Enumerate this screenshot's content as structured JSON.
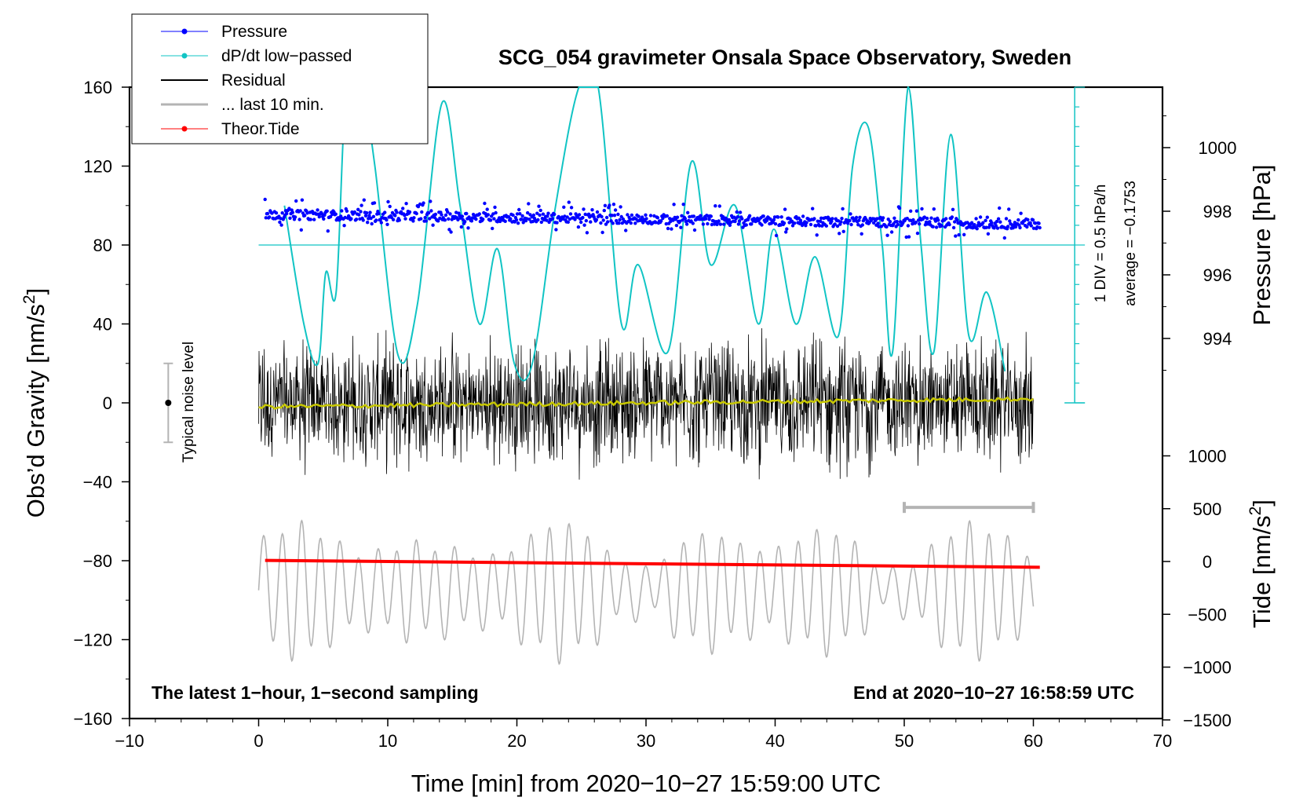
{
  "chart_data": {
    "type": "line",
    "title": "SCG_054 gravimeter Onsala Space Observatory, Sweden",
    "xlabel": "Time [min] from 2020−10−27 15:59:00 UTC",
    "ylabel_left": "Obs’d Gravity [nm/s²]",
    "ylabel_left_main": "Obs’d Gravity [nm/s",
    "ylabel_left_sup": "2",
    "ylabel_left_end": "]",
    "ylabel_right_pressure": "Pressure [hPa]",
    "ylabel_right_tide": "Tide [nm/s²]",
    "ylabel_right_tide_main": "Tide [nm/s",
    "ylabel_right_tide_sup": "2",
    "ylabel_right_tide_end": "]",
    "xlim": [
      -10,
      70
    ],
    "ylim": [
      -160,
      160
    ],
    "pressure_range_hPa": [
      990,
      1001.5
    ],
    "tide_range": [
      -1500,
      1100
    ],
    "x_ticks": [
      -10,
      0,
      10,
      20,
      30,
      40,
      50,
      60,
      70
    ],
    "x_tick_labels": [
      "−10",
      "0",
      "10",
      "20",
      "30",
      "40",
      "50",
      "60",
      "70"
    ],
    "y_ticks": [
      160,
      120,
      80,
      40,
      0,
      -40,
      -80,
      -120,
      -160
    ],
    "y_tick_labels": [
      "160",
      "120",
      "80",
      "40",
      "0",
      "−40",
      "−80",
      "−120",
      "−160"
    ],
    "pressure_ticks": [
      1000,
      998,
      996,
      994
    ],
    "pressure_tick_labels": [
      "1000",
      "998",
      "996",
      "994"
    ],
    "tide_ticks": [
      1000,
      500,
      0,
      -500,
      -1000,
      -1500
    ],
    "tide_tick_labels": [
      "1000",
      "500",
      "0",
      "−500",
      "−1000",
      "−1500"
    ],
    "legend": [
      "Pressure",
      "dP/dt low−passed",
      "Residual",
      "... last 10 min.",
      "Theor.Tide"
    ],
    "legend_position": "top-left",
    "series": [
      {
        "name": "Pressure",
        "color": "#0000ff",
        "unit": "hPa",
        "start": 997.9,
        "end": 997.6,
        "x": [
          0.5,
          60.5
        ]
      },
      {
        "name": "dP/dt low−passed",
        "color": "#11c4c4",
        "x": [
          2,
          3.5,
          4.6,
          5.2,
          6,
          6.8,
          8,
          9,
          10.8,
          12.3,
          14.2,
          15.6,
          17.1,
          18.5,
          19.8,
          21.2,
          23,
          24.8,
          26.3,
          28.1,
          29.4,
          31.7,
          33.5,
          35,
          36.9,
          38.7,
          39.9,
          41.6,
          43.1,
          44.9,
          46,
          47.2,
          48.3,
          49.1,
          50.3,
          51.3,
          52.3,
          53.6,
          55,
          56.4,
          57.8
        ],
        "y": [
          100,
          40,
          20,
          66,
          56,
          160,
          160,
          120,
          24,
          50,
          152,
          100,
          40,
          78,
          20,
          20,
          100,
          160,
          160,
          40,
          70,
          26,
          122,
          70,
          100,
          40,
          88,
          40,
          74,
          34,
          120,
          140,
          80,
          26,
          160,
          80,
          26,
          136,
          34,
          56,
          16
        ]
      },
      {
        "name": "Residual",
        "color": "#000000",
        "x_range": [
          0,
          60
        ],
        "envelope_nm_s2": 40
      },
      {
        "name": "... last 10 min.",
        "color": "#b4b4b4",
        "x_range": [
          50,
          60
        ],
        "y": -53
      },
      {
        "name": "Theor.Tide",
        "color": "#ff0000",
        "unit": "nm/s²",
        "x": [
          0.5,
          60.5
        ],
        "y": [
          10,
          -55
        ]
      },
      {
        "name": "Residual smoothed",
        "color": "#c8c800",
        "x": [
          0,
          60
        ],
        "y": [
          -2,
          2
        ]
      },
      {
        "name": "Tide residual (grey)",
        "color": "#b4b4b4",
        "x_range": [
          0,
          60
        ],
        "center": -95,
        "amplitude": 27
      }
    ],
    "dpdt_baseline": 80,
    "dpdt_scale_label": "1 DIV = 0.5 hPa/h",
    "dpdt_average_label": "average = −0.1753",
    "noise_level_label": "Typical noise level",
    "noise_level": {
      "x": -7,
      "center": 0,
      "half_range": 20
    },
    "footer_left": "The latest 1−hour, 1−second sampling",
    "footer_right": "End at 2020−10−27 16:58:59 UTC"
  }
}
